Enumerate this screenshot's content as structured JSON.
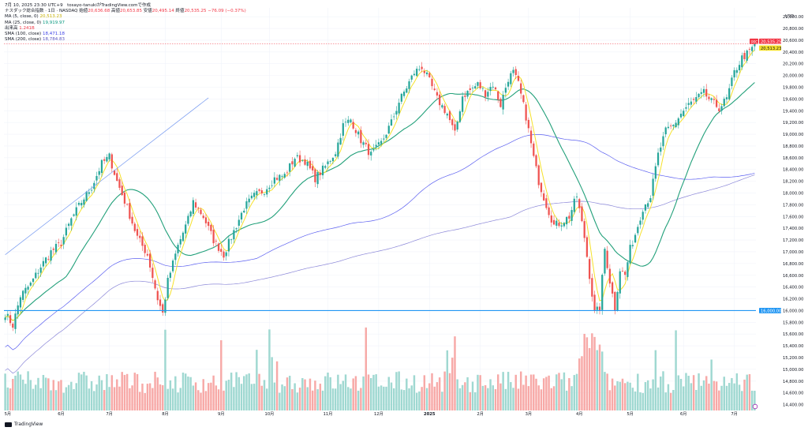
{
  "header": {
    "line1": "7月 10, 2025 23:30 UTC+9　tosayo-tanukiがTradingView.comで作成",
    "symbol": "ナスダック総合指数 · 1日 · NASDAQ",
    "open_label": "始値",
    "open": "20,636.68",
    "high_label": "高値",
    "high": "20,653.85",
    "low_label": "安値",
    "low": "20,495.14",
    "close_label": "終値",
    "close": "20,535.25",
    "change": "−76.09 (−0.37%)",
    "ma5_label": "MA (5, close, 0)",
    "ma5": "20,513.23",
    "ma25_label": "MA (25, close, 0)",
    "ma25": "19,919.97",
    "volume_label": "出来高",
    "volume": "1.241B",
    "sma100_label": "SMA (100, close)",
    "sma100": "18,471.18",
    "sma200_label": "SMA (200, close)",
    "sma200": "18,784.83"
  },
  "brand": "TradingView",
  "colors": {
    "up": "#26a69a",
    "down": "#ef5350",
    "ma5": "#f6e12a",
    "ma25": "#22a07a",
    "sma100": "#5b5ff0",
    "sma200": "#8b87d8",
    "hline": "#2196f3",
    "trend": "#7a9cf0"
  },
  "chart_data": {
    "type": "candlestick",
    "currency": "USD",
    "y_ticks": [
      "14,400.00",
      "14,600.00",
      "14,800.00",
      "15,000.00",
      "15,200.00",
      "15,400.00",
      "15,600.00",
      "15,800.00",
      "16,000.00",
      "16,200.00",
      "16,400.00",
      "16,600.00",
      "16,800.00",
      "17,000.00",
      "17,200.00",
      "17,400.00",
      "17,600.00",
      "17,800.00",
      "18,000.00",
      "18,200.00",
      "18,400.00",
      "18,600.00",
      "18,800.00",
      "19,000.00",
      "19,200.00",
      "19,400.00",
      "19,600.00",
      "19,800.00",
      "20,000.00",
      "20,200.00",
      "20,400.00",
      "20,600.00",
      "20,800.00",
      "21,000.00"
    ],
    "y_tick_values": [
      14400,
      14600,
      14800,
      15000,
      15200,
      15400,
      15600,
      15800,
      16000,
      16200,
      16400,
      16600,
      16800,
      17000,
      17200,
      17400,
      17600,
      17800,
      18000,
      18200,
      18400,
      18600,
      18800,
      19000,
      19200,
      19400,
      19600,
      19800,
      20000,
      20200,
      20400,
      20600,
      20800,
      21000
    ],
    "ylim": [
      14300,
      21150
    ],
    "x_ticks": [
      {
        "label": "5月",
        "value": 1
      },
      {
        "label": "6月",
        "value": 22
      },
      {
        "label": "7月",
        "value": 41
      },
      {
        "label": "8月",
        "value": 63
      },
      {
        "label": "9月",
        "value": 85
      },
      {
        "label": "10月",
        "value": 104
      },
      {
        "label": "11月",
        "value": 127
      },
      {
        "label": "12月",
        "value": 147
      },
      {
        "label": "2025",
        "value": 167
      },
      {
        "label": "2月",
        "value": 187
      },
      {
        "label": "3月",
        "value": 206
      },
      {
        "label": "4月",
        "value": 226
      },
      {
        "label": "5月",
        "value": 246
      },
      {
        "label": "6月",
        "value": 267
      },
      {
        "label": "7月",
        "value": 287
      }
    ],
    "price_labels": [
      {
        "name": "IXIC",
        "value": 20535.25,
        "text": "20,535.25",
        "bg": "#f23645"
      },
      {
        "name": "MA5",
        "value": 20513.23,
        "text": "20,513.23",
        "bg": "#f6e12a"
      },
      {
        "name": "hline",
        "value": 16000.0,
        "text": "16,000.00",
        "bg": "#2196f3"
      }
    ],
    "close_level": 20535.25,
    "horizontal_line": 16000,
    "trend_line": [
      {
        "bar": 0,
        "price": 16950
      },
      {
        "bar": 80,
        "price": 19620
      }
    ],
    "anchors": [
      [
        0,
        15950
      ],
      [
        3,
        15750
      ],
      [
        6,
        16250
      ],
      [
        10,
        16450
      ],
      [
        14,
        16750
      ],
      [
        18,
        17000
      ],
      [
        22,
        17150
      ],
      [
        26,
        17550
      ],
      [
        30,
        17850
      ],
      [
        34,
        18100
      ],
      [
        38,
        18500
      ],
      [
        41,
        18620
      ],
      [
        44,
        18200
      ],
      [
        48,
        17750
      ],
      [
        52,
        17250
      ],
      [
        56,
        16950
      ],
      [
        60,
        16200
      ],
      [
        62,
        15950
      ],
      [
        64,
        16500
      ],
      [
        68,
        17100
      ],
      [
        72,
        17550
      ],
      [
        74,
        17850
      ],
      [
        78,
        17600
      ],
      [
        82,
        17200
      ],
      [
        86,
        16950
      ],
      [
        90,
        17350
      ],
      [
        94,
        17750
      ],
      [
        98,
        17950
      ],
      [
        102,
        18050
      ],
      [
        106,
        18250
      ],
      [
        110,
        18300
      ],
      [
        114,
        18600
      ],
      [
        118,
        18550
      ],
      [
        122,
        18250
      ],
      [
        126,
        18450
      ],
      [
        130,
        18700
      ],
      [
        133,
        19150
      ],
      [
        136,
        19250
      ],
      [
        140,
        18900
      ],
      [
        144,
        18650
      ],
      [
        148,
        18850
      ],
      [
        152,
        19200
      ],
      [
        155,
        19550
      ],
      [
        158,
        19800
      ],
      [
        161,
        20050
      ],
      [
        164,
        20150
      ],
      [
        167,
        19900
      ],
      [
        170,
        19600
      ],
      [
        174,
        19350
      ],
      [
        177,
        19000
      ],
      [
        180,
        19650
      ],
      [
        183,
        19750
      ],
      [
        186,
        19850
      ],
      [
        189,
        19700
      ],
      [
        192,
        19850
      ],
      [
        195,
        19500
      ],
      [
        198,
        19950
      ],
      [
        200,
        20050
      ],
      [
        202,
        19850
      ],
      [
        205,
        19300
      ],
      [
        208,
        18600
      ],
      [
        210,
        18200
      ],
      [
        213,
        17800
      ],
      [
        216,
        17450
      ],
      [
        219,
        17500
      ],
      [
        222,
        17600
      ],
      [
        225,
        17950
      ],
      [
        228,
        17250
      ],
      [
        230,
        16600
      ],
      [
        232,
        15950
      ],
      [
        234,
        16050
      ],
      [
        236,
        17050
      ],
      [
        238,
        16500
      ],
      [
        240,
        16050
      ],
      [
        242,
        16700
      ],
      [
        244,
        16600
      ],
      [
        246,
        17050
      ],
      [
        248,
        17300
      ],
      [
        251,
        17750
      ],
      [
        254,
        17950
      ],
      [
        257,
        18650
      ],
      [
        260,
        19050
      ],
      [
        263,
        19150
      ],
      [
        266,
        19350
      ],
      [
        269,
        19500
      ],
      [
        272,
        19600
      ],
      [
        275,
        19700
      ],
      [
        278,
        19550
      ],
      [
        281,
        19450
      ],
      [
        284,
        19600
      ],
      [
        287,
        20050
      ],
      [
        290,
        20300
      ],
      [
        293,
        20400
      ],
      [
        295,
        20535
      ]
    ],
    "volume_scale": [
      0,
      1
    ]
  }
}
